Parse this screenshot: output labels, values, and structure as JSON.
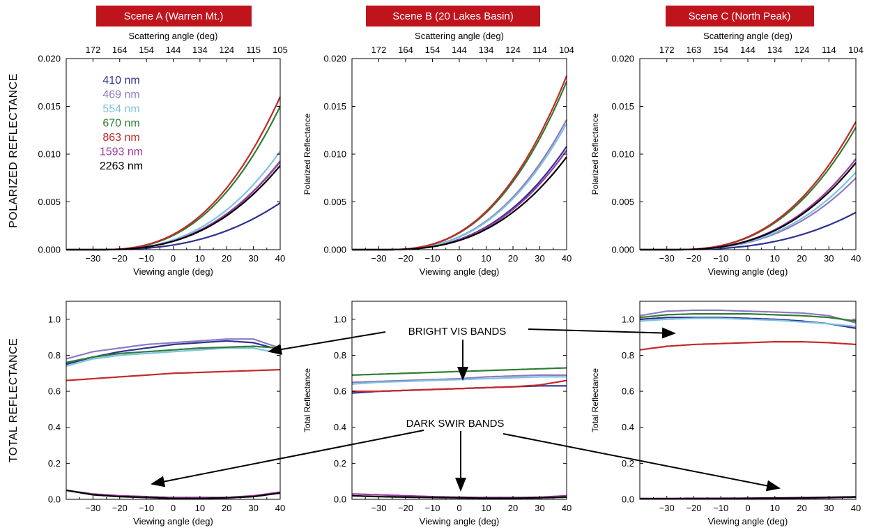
{
  "colors": {
    "scene_banner_bg": "#c0141c",
    "scene_banner_text": "#ffffff"
  },
  "row_labels": {
    "top": "POLARIZED REFLECTANCE",
    "bottom": "TOTAL REFLECTANCE"
  },
  "annotations": {
    "bright": "BRIGHT VIS BANDS",
    "dark": "DARK SWIR BANDS"
  },
  "legend": [
    {
      "label": "410 nm",
      "color": "#2e3192"
    },
    {
      "label": "469 nm",
      "color": "#8f7ac2"
    },
    {
      "label": "554 nm",
      "color": "#7ec3e0"
    },
    {
      "label": "670 nm",
      "color": "#2e7d32"
    },
    {
      "label": "863 nm",
      "color": "#c62828"
    },
    {
      "label": "1593 nm",
      "color": "#9c3da3"
    },
    {
      "label": "2263 nm",
      "color": "#000000"
    }
  ],
  "chart_data": [
    {
      "type": "line",
      "scene": "Scene A (Warren Mt.)",
      "top_xlabel": "Scattering angle (deg)",
      "top_ticks": [
        "172",
        "164",
        "154",
        "144",
        "134",
        "124",
        "115",
        "105"
      ],
      "xlabel": "Viewing angle (deg)",
      "ylabel": "",
      "xlim": [
        -40,
        40
      ],
      "ylim": [
        0,
        0.02
      ],
      "xticks": [
        -30,
        -20,
        -10,
        0,
        10,
        20,
        30,
        40
      ],
      "yticks": [
        "0.000",
        "0.005",
        "0.010",
        "0.015",
        "0.020"
      ],
      "series": [
        {
          "name": "410 nm",
          "end": 0.0049
        },
        {
          "name": "469 nm",
          "end": 0.0093
        },
        {
          "name": "554 nm",
          "end": 0.0103
        },
        {
          "name": "670 nm",
          "end": 0.015
        },
        {
          "name": "863 nm",
          "end": 0.016
        },
        {
          "name": "1593 nm",
          "end": 0.0092
        },
        {
          "name": "2263 nm",
          "end": 0.0088
        }
      ]
    },
    {
      "type": "line",
      "scene": "Scene B (20 Lakes Basin)",
      "top_xlabel": "Scattering angle (deg)",
      "top_ticks": [
        "172",
        "164",
        "154",
        "144",
        "134",
        "124",
        "114",
        "104"
      ],
      "xlabel": "Viewing angle (deg)",
      "ylabel": "Polarized Reflectance",
      "xlim": [
        -40,
        40
      ],
      "ylim": [
        0,
        0.02
      ],
      "xticks": [
        -30,
        -20,
        -10,
        0,
        10,
        20,
        30,
        40
      ],
      "yticks": [
        "0.000",
        "0.005",
        "0.010",
        "0.015",
        "0.020"
      ],
      "series": [
        {
          "name": "410 nm",
          "end": 0.0108
        },
        {
          "name": "469 nm",
          "end": 0.0136
        },
        {
          "name": "554 nm",
          "end": 0.0132
        },
        {
          "name": "670 nm",
          "end": 0.0176
        },
        {
          "name": "863 nm",
          "end": 0.0182
        },
        {
          "name": "1593 nm",
          "end": 0.0104
        },
        {
          "name": "2263 nm",
          "end": 0.0097
        }
      ]
    },
    {
      "type": "line",
      "scene": "Scene C (North Peak)",
      "top_xlabel": "Scattering angle (deg)",
      "top_ticks": [
        "172",
        "163",
        "154",
        "144",
        "134",
        "124",
        "114",
        "104"
      ],
      "xlabel": "Viewing angle (deg)",
      "ylabel": "Polarized Reflectance",
      "xlim": [
        -40,
        40
      ],
      "ylim": [
        0,
        0.02
      ],
      "xticks": [
        -30,
        -20,
        -10,
        0,
        10,
        20,
        30,
        40
      ],
      "yticks": [
        "0.000",
        "0.005",
        "0.010",
        "0.015",
        "0.020"
      ],
      "series": [
        {
          "name": "410 nm",
          "end": 0.0039
        },
        {
          "name": "469 nm",
          "end": 0.0075
        },
        {
          "name": "554 nm",
          "end": 0.0081
        },
        {
          "name": "670 nm",
          "end": 0.0128
        },
        {
          "name": "863 nm",
          "end": 0.0134
        },
        {
          "name": "1593 nm",
          "end": 0.0095
        },
        {
          "name": "2263 nm",
          "end": 0.0091
        }
      ]
    },
    {
      "type": "line",
      "scene": "Scene A (Warren Mt.)",
      "xlabel": "Viewing angle (deg)",
      "ylabel": "",
      "xlim": [
        -40,
        40
      ],
      "ylim": [
        0,
        1.1
      ],
      "xticks": [
        -30,
        -20,
        -10,
        0,
        10,
        20,
        30,
        40
      ],
      "yticks": [
        "0.0",
        "0.2",
        "0.4",
        "0.6",
        "0.8",
        "1.0"
      ],
      "x": [
        -40,
        -30,
        -20,
        -10,
        0,
        10,
        20,
        30,
        40
      ],
      "series": [
        {
          "name": "410 nm",
          "values": [
            0.75,
            0.79,
            0.82,
            0.84,
            0.86,
            0.87,
            0.88,
            0.87,
            0.83
          ]
        },
        {
          "name": "469 nm",
          "values": [
            0.78,
            0.82,
            0.84,
            0.86,
            0.87,
            0.88,
            0.89,
            0.89,
            0.84
          ]
        },
        {
          "name": "554 nm",
          "values": [
            0.74,
            0.78,
            0.8,
            0.81,
            0.82,
            0.83,
            0.84,
            0.84,
            0.81
          ]
        },
        {
          "name": "670 nm",
          "values": [
            0.76,
            0.79,
            0.81,
            0.82,
            0.83,
            0.84,
            0.845,
            0.85,
            0.84
          ]
        },
        {
          "name": "863 nm",
          "values": [
            0.66,
            0.67,
            0.68,
            0.69,
            0.7,
            0.705,
            0.71,
            0.715,
            0.72
          ]
        },
        {
          "name": "1593 nm",
          "values": [
            0.05,
            0.03,
            0.02,
            0.015,
            0.01,
            0.01,
            0.01,
            0.02,
            0.04
          ]
        },
        {
          "name": "2263 nm",
          "values": [
            0.05,
            0.025,
            0.015,
            0.01,
            0.005,
            0.005,
            0.008,
            0.015,
            0.035
          ]
        }
      ]
    },
    {
      "type": "line",
      "scene": "Scene B (20 Lakes Basin)",
      "xlabel": "Viewing angle (deg)",
      "ylabel": "Total Reflectance",
      "xlim": [
        -40,
        40
      ],
      "ylim": [
        0,
        1.1
      ],
      "xticks": [
        -30,
        -20,
        -10,
        0,
        10,
        20,
        30,
        40
      ],
      "yticks": [
        "0.0",
        "0.2",
        "0.4",
        "0.6",
        "0.8",
        "1.0"
      ],
      "x": [
        -40,
        -30,
        -20,
        -10,
        0,
        10,
        20,
        30,
        40
      ],
      "series": [
        {
          "name": "410 nm",
          "values": [
            0.59,
            0.6,
            0.605,
            0.61,
            0.615,
            0.62,
            0.625,
            0.63,
            0.63
          ]
        },
        {
          "name": "469 nm",
          "values": [
            0.65,
            0.655,
            0.66,
            0.665,
            0.67,
            0.68,
            0.685,
            0.69,
            0.69
          ]
        },
        {
          "name": "554 nm",
          "values": [
            0.64,
            0.65,
            0.655,
            0.66,
            0.665,
            0.67,
            0.675,
            0.68,
            0.68
          ]
        },
        {
          "name": "670 nm",
          "values": [
            0.69,
            0.695,
            0.7,
            0.705,
            0.71,
            0.715,
            0.72,
            0.725,
            0.73
          ]
        },
        {
          "name": "863 nm",
          "values": [
            0.6,
            0.6,
            0.605,
            0.61,
            0.615,
            0.62,
            0.625,
            0.635,
            0.66
          ]
        },
        {
          "name": "1593 nm",
          "values": [
            0.03,
            0.025,
            0.02,
            0.015,
            0.012,
            0.01,
            0.01,
            0.012,
            0.02
          ]
        },
        {
          "name": "2263 nm",
          "values": [
            0.02,
            0.015,
            0.012,
            0.01,
            0.008,
            0.006,
            0.006,
            0.008,
            0.012
          ]
        }
      ]
    },
    {
      "type": "line",
      "scene": "Scene C (North Peak)",
      "xlabel": "Viewing angle (deg)",
      "ylabel": "Total Reflectance",
      "xlim": [
        -40,
        40
      ],
      "ylim": [
        0,
        1.1
      ],
      "xticks": [
        -30,
        -20,
        -10,
        0,
        10,
        20,
        30,
        40
      ],
      "yticks": [
        "0.0",
        "0.2",
        "0.4",
        "0.6",
        "0.8",
        "1.0"
      ],
      "x": [
        -40,
        -30,
        -20,
        -10,
        0,
        10,
        20,
        30,
        40
      ],
      "series": [
        {
          "name": "410 nm",
          "values": [
            1.0,
            1.01,
            1.01,
            1.01,
            1.005,
            1.0,
            0.99,
            0.975,
            0.95
          ]
        },
        {
          "name": "469 nm",
          "values": [
            1.02,
            1.045,
            1.05,
            1.05,
            1.045,
            1.04,
            1.035,
            1.02,
            0.98
          ]
        },
        {
          "name": "554 nm",
          "values": [
            0.99,
            1.0,
            1.005,
            1.005,
            1.0,
            0.995,
            0.985,
            0.975,
            0.96
          ]
        },
        {
          "name": "670 nm",
          "values": [
            1.01,
            1.025,
            1.03,
            1.03,
            1.03,
            1.025,
            1.02,
            1.01,
            0.99
          ]
        },
        {
          "name": "863 nm",
          "values": [
            0.83,
            0.85,
            0.86,
            0.865,
            0.87,
            0.875,
            0.875,
            0.87,
            0.86
          ]
        },
        {
          "name": "1593 nm",
          "values": [
            0.005,
            0.005,
            0.006,
            0.006,
            0.007,
            0.008,
            0.01,
            0.012,
            0.015
          ]
        },
        {
          "name": "2263 nm",
          "values": [
            0.003,
            0.003,
            0.004,
            0.004,
            0.005,
            0.006,
            0.007,
            0.009,
            0.012
          ]
        }
      ]
    }
  ]
}
